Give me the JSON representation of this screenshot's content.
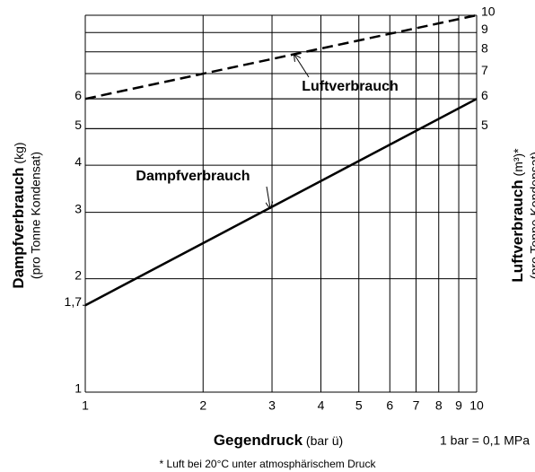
{
  "chart_data": {
    "type": "line",
    "x": [
      1,
      10
    ],
    "series": [
      {
        "name": "Dampfverbrauch",
        "color": "#000000",
        "dash": "solid",
        "values": [
          1.7,
          6
        ]
      },
      {
        "name": "Luftverbrauch",
        "color": "#000000",
        "dash": "dashed",
        "axis": "y2",
        "values": [
          6,
          10
        ]
      }
    ],
    "x_log": true,
    "y_log": true,
    "xlim": [
      1,
      10
    ],
    "xticks": [
      1,
      2,
      3,
      4,
      5,
      6,
      7,
      8,
      9,
      10
    ],
    "ylim": [
      1,
      10
    ],
    "yticks": [
      1,
      {
        "value": 1.7,
        "label": "1,7"
      },
      2,
      3,
      4,
      5,
      6
    ],
    "y2lim": [
      1,
      10
    ],
    "y2ticks": [
      5,
      6,
      7,
      8,
      9,
      10
    ],
    "grid": true,
    "x_label": "Gegendruck",
    "x_label_unit": "(bar ü)",
    "y_label": "Dampfverbrauch",
    "y_label_unit": "(kg)",
    "y_label_sub": "(pro Tonne Kondensat)",
    "y2_label": "Luftverbrauch",
    "y2_label_unit": "(m³)*",
    "y2_label_sub": "(pro Tonne Kondensat)",
    "note": "1 bar = 0,1 MPa",
    "footnote": "* Luft bei 20°C unter atmosphärischem Druck"
  }
}
